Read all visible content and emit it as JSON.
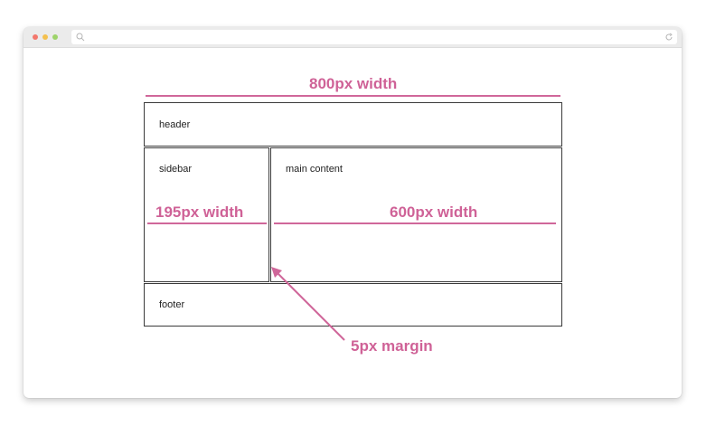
{
  "colors": {
    "accent": "#d0679a",
    "box_border": "#3a3a3a",
    "chrome": "#ebebeb"
  },
  "browser": {
    "controls": [
      "close-dot",
      "minimize-dot",
      "maximize-dot"
    ],
    "icons": {
      "search": "search-icon",
      "reload": "reload-icon"
    }
  },
  "diagram": {
    "total_width_label": "800px width",
    "sidebar_width_label": "195px width",
    "main_width_label": "600px width",
    "margin_label": "5px margin",
    "boxes": {
      "header": "header",
      "sidebar": "sidebar",
      "main": "main content",
      "footer": "footer"
    }
  }
}
